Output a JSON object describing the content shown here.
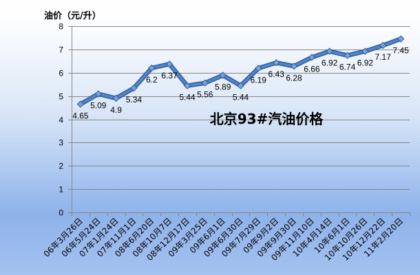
{
  "chart_data": {
    "type": "line",
    "title": "北京93#汽油价格",
    "xlabel": "",
    "ylabel": "油价（元/升）",
    "ylim": [
      0,
      8
    ],
    "yticks": [
      0,
      1,
      2,
      3,
      4,
      5,
      6,
      7,
      8
    ],
    "grid": true,
    "show_legend": false,
    "data_labels": true,
    "marker": "diamond",
    "categories": [
      "06年3月26日",
      "06年5月24日",
      "07年1月24日",
      "07年11月1日",
      "08年6月20日",
      "08年10月7日",
      "08年12月17日",
      "09年3月25日",
      "09年6月1日",
      "09年6月30日",
      "09年7月29日",
      "09年9月2日",
      "09年9月30日",
      "09年11月10日",
      "10年4月14日",
      "10年6月1日",
      "10年10月26日",
      "10年12月22日",
      "11年2月20日"
    ],
    "series": [
      {
        "values": [
          4.65,
          5.09,
          4.9,
          5.34,
          6.2,
          6.37,
          5.44,
          5.56,
          5.89,
          5.44,
          6.19,
          6.43,
          6.28,
          6.66,
          6.92,
          6.74,
          6.92,
          7.17,
          7.45
        ]
      }
    ],
    "colors": {
      "line": "#5585c8",
      "line_edge": "#2e5c9a",
      "marker": "#7aa3dc",
      "marker_edge": "#2e5c9a",
      "grid": "#868686",
      "axis": "#868686"
    }
  }
}
